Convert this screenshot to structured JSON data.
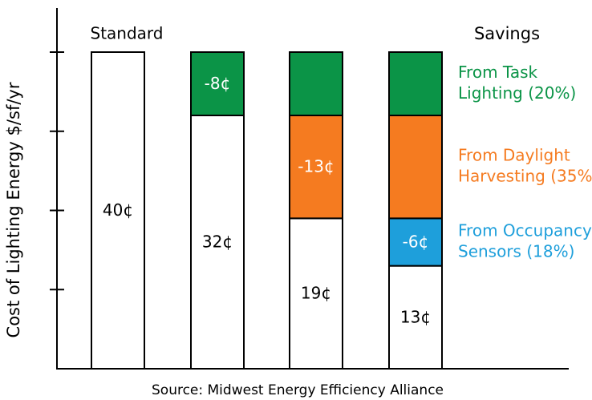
{
  "chart_data": {
    "type": "bar",
    "stacked": true,
    "ylabel": "Cost of Lighting Energy $/sf/yr",
    "source": "Source: Midwest Energy Efficiency Alliance",
    "ylim": [
      0,
      40
    ],
    "grid": false,
    "legend_title": "Savings",
    "legend_position": "right",
    "bars": [
      {
        "top_label": "Standard",
        "base_value": 40,
        "base_label": "40¢",
        "segments": []
      },
      {
        "base_value": 32,
        "base_label": "32¢",
        "segments": [
          {
            "series": "task",
            "value": 8,
            "label": "-8¢"
          }
        ]
      },
      {
        "base_value": 19,
        "base_label": "19¢",
        "segments": [
          {
            "series": "daylight",
            "value": 13,
            "label": "-13¢"
          },
          {
            "series": "task",
            "value": 8,
            "label": ""
          }
        ]
      },
      {
        "base_value": 13,
        "base_label": "13¢",
        "segments": [
          {
            "series": "occupancy",
            "value": 6,
            "label": "-6¢"
          },
          {
            "series": "daylight",
            "value": 13,
            "label": ""
          },
          {
            "series": "task",
            "value": 8,
            "label": ""
          }
        ]
      }
    ],
    "series": [
      {
        "id": "task",
        "name_lines": [
          "From Task",
          "Lighting (20%)"
        ],
        "color": "#0b9447"
      },
      {
        "id": "daylight",
        "name_lines": [
          "From Daylight",
          "Harvesting (35%)"
        ],
        "color": "#f57b20"
      },
      {
        "id": "occupancy",
        "name_lines": [
          "From Occupancy",
          "Sensors (18%)"
        ],
        "color": "#1e9fdb"
      }
    ],
    "base_color": "#ffffff"
  }
}
